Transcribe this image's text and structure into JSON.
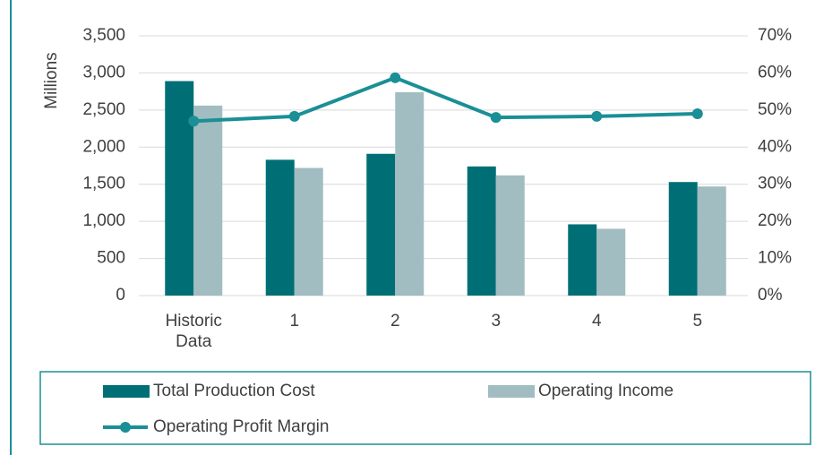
{
  "chart_data": {
    "type": "bar",
    "y_label": "Millions",
    "categories": [
      "Historic Data",
      "1",
      "2",
      "3",
      "4",
      "5"
    ],
    "series": [
      {
        "name": "Total Production Cost",
        "type": "bar",
        "color": "#006f75",
        "values": [
          2890,
          1830,
          1910,
          1740,
          960,
          1530
        ]
      },
      {
        "name": "Operating Income",
        "type": "bar",
        "color": "#a1bdc1",
        "values": [
          2560,
          1720,
          2740,
          1620,
          900,
          1470
        ]
      },
      {
        "name": "Operating Profit Margin",
        "type": "line",
        "axis": "y2",
        "color": "#1a8f96",
        "values": [
          47,
          48.3,
          58.7,
          48,
          48.3,
          49
        ]
      }
    ],
    "ylim": [
      0,
      3500
    ],
    "yticks": [
      0,
      500,
      {
        "value": 1000,
        "label": "1,000"
      },
      {
        "value": 1500,
        "label": "1,500"
      },
      {
        "value": 2000,
        "label": "2,000"
      },
      {
        "value": 2500,
        "label": "2,500"
      },
      {
        "value": 3000,
        "label": "3,000"
      },
      {
        "value": 3500,
        "label": "3,500"
      }
    ],
    "y2lim": [
      0,
      70
    ],
    "y2ticks": [
      {
        "value": 0,
        "label": "0%"
      },
      {
        "value": 10,
        "label": "10%"
      },
      {
        "value": 20,
        "label": "20%"
      },
      {
        "value": 30,
        "label": "30%"
      },
      {
        "value": 40,
        "label": "40%"
      },
      {
        "value": 50,
        "label": "50%"
      },
      {
        "value": 60,
        "label": "60%"
      },
      {
        "value": 70,
        "label": "70%"
      }
    ],
    "grid": true,
    "legend": "bottom"
  }
}
